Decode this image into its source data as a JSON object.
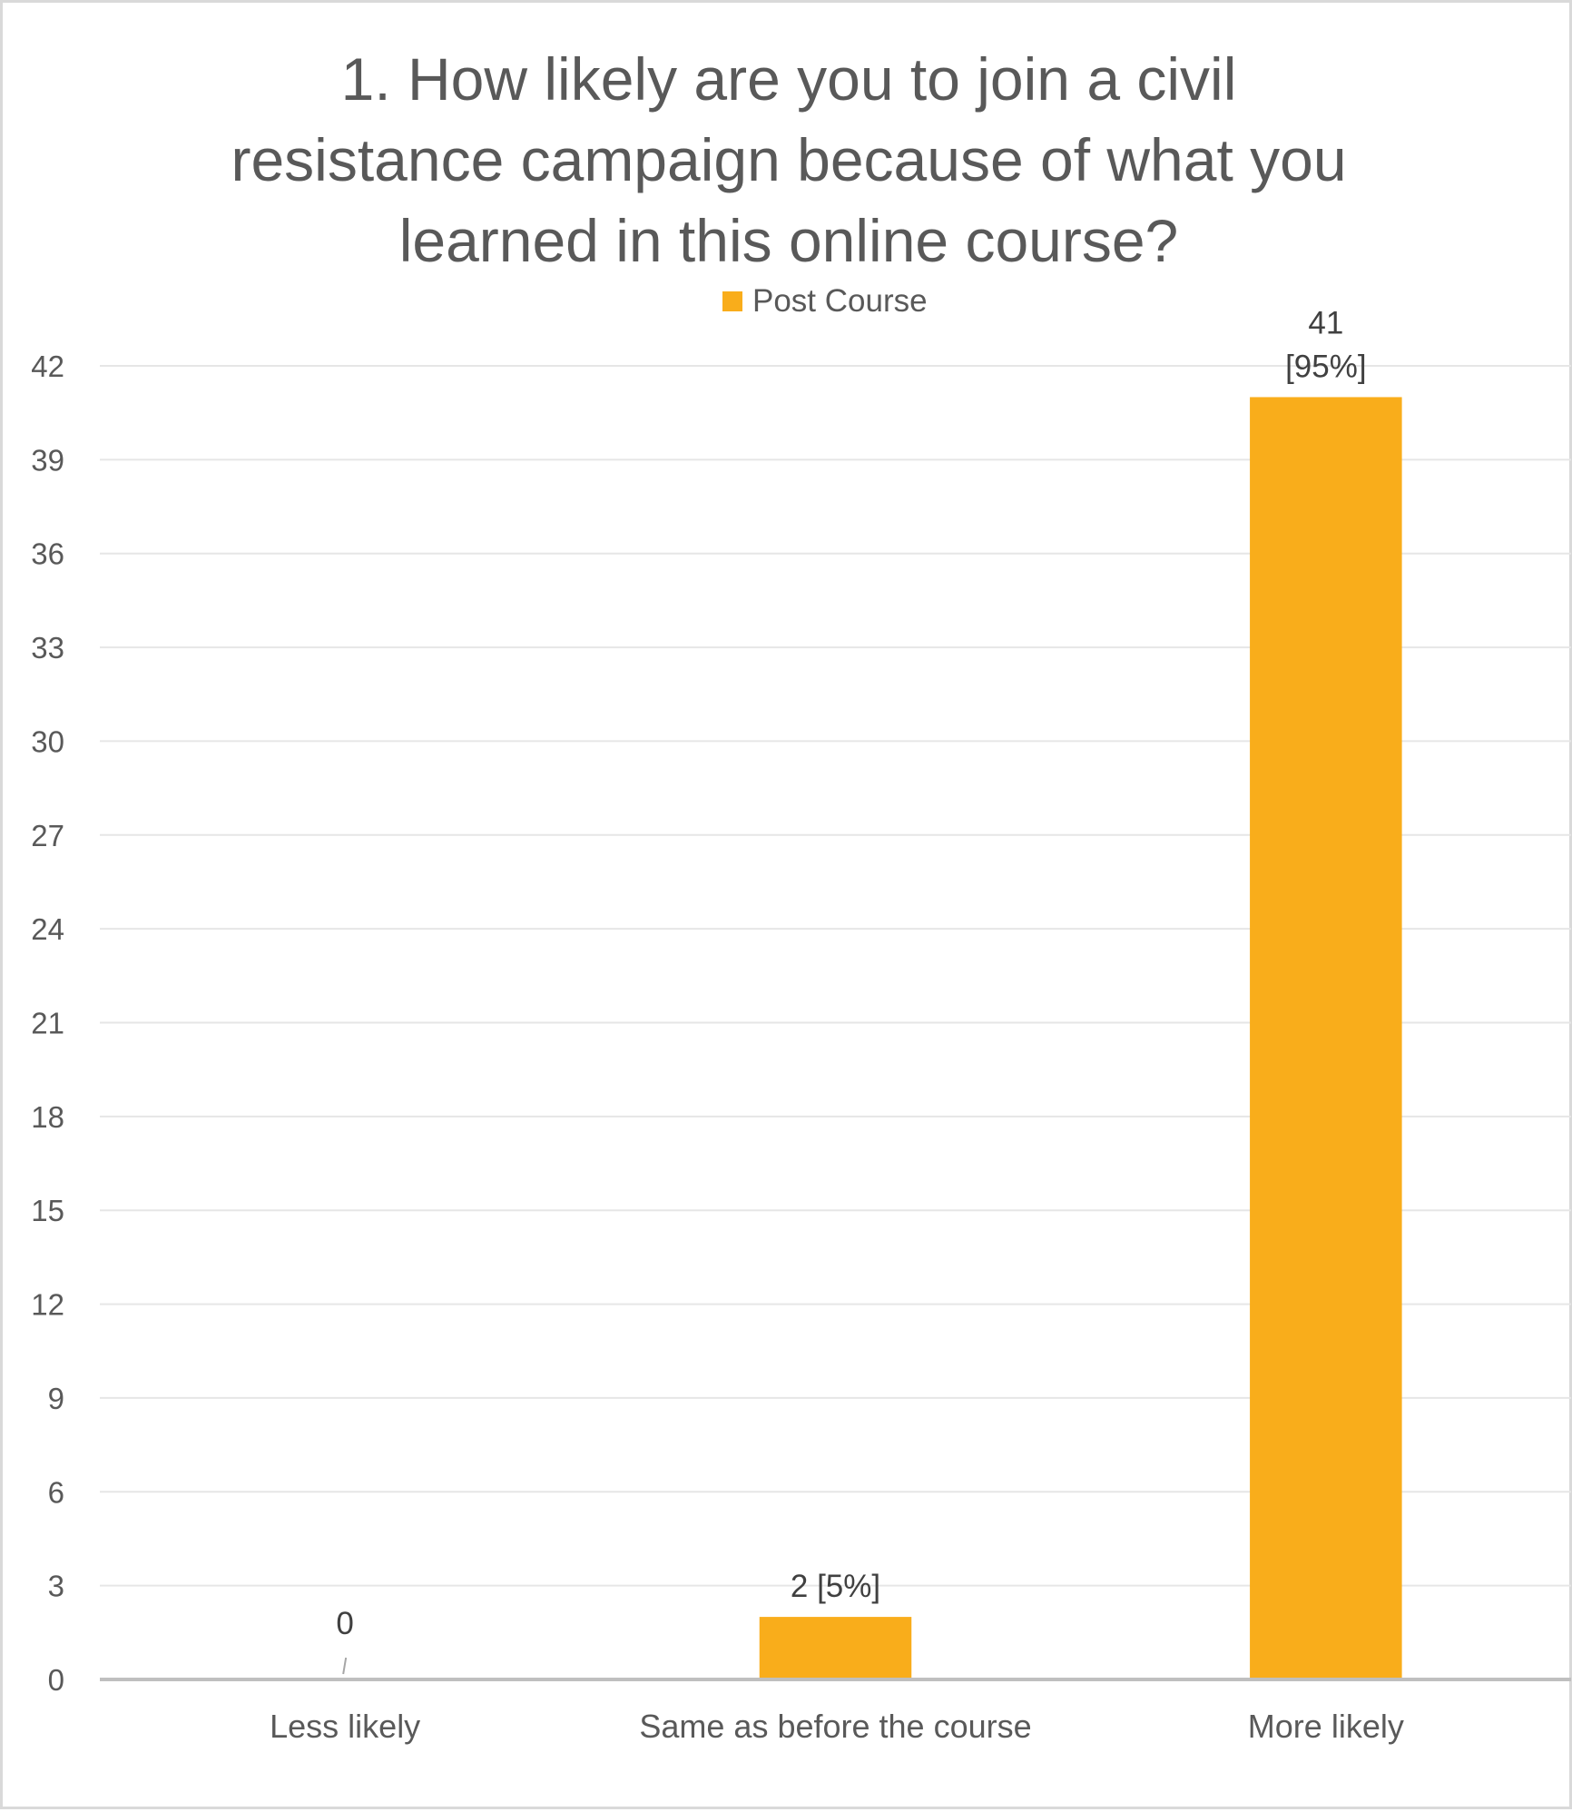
{
  "chart_data": {
    "type": "bar",
    "title": "1. How likely are you to join a civil resistance campaign because of what you learned in this online course?",
    "title_lines": [
      "1. How likely are you to join a civil",
      "resistance campaign because of what you",
      "learned in this online course?"
    ],
    "categories": [
      "Less likely",
      "Same as before the course",
      "More likely"
    ],
    "series": [
      {
        "name": "Post Course",
        "color": "#F9AD1B",
        "values": [
          0,
          2,
          41
        ],
        "labels": [
          "0",
          "2 [5%]",
          "41 [95%]"
        ]
      }
    ],
    "legend": {
      "position": "top",
      "entries": [
        "Post Course"
      ]
    },
    "ylim": [
      0,
      42
    ],
    "yticks": [
      "0",
      "3",
      "6",
      "9",
      "12",
      "15",
      "18",
      "21",
      "24",
      "27",
      "30",
      "33",
      "36",
      "39",
      "42"
    ],
    "xlabel": "",
    "ylabel": "",
    "grid": true
  }
}
